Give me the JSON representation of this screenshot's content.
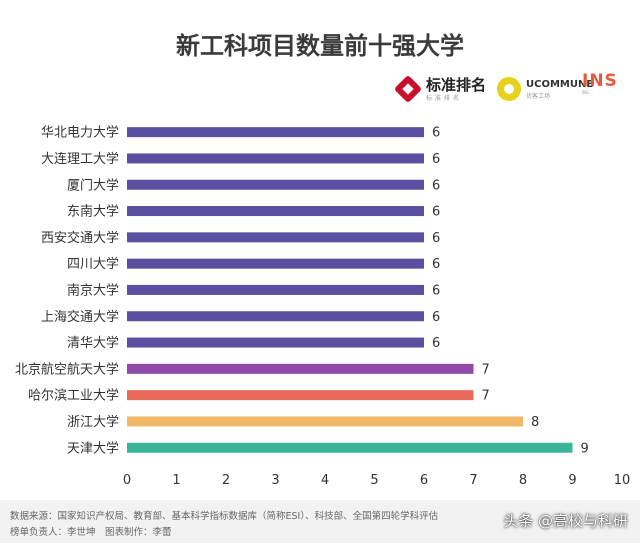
{
  "chart_data": {
    "type": "bar",
    "orientation": "horizontal",
    "title": "新工科项目数量前十强大学",
    "categories": [
      "华北电力大学",
      "大连理工大学",
      "厦门大学",
      "东南大学",
      "西安交通大学",
      "四川大学",
      "南京大学",
      "上海交通大学",
      "清华大学",
      "北京航空航天大学",
      "哈尔滨工业大学",
      "浙江大学",
      "天津大学"
    ],
    "values": [
      6,
      6,
      6,
      6,
      6,
      6,
      6,
      6,
      6,
      7,
      7,
      8,
      9
    ],
    "colors": [
      "#5a4fa0",
      "#5a4fa0",
      "#5a4fa0",
      "#5a4fa0",
      "#5a4fa0",
      "#5a4fa0",
      "#5a4fa0",
      "#5a4fa0",
      "#5a4fa0",
      "#8e4aa6",
      "#e86a5a",
      "#f2b86a",
      "#3ab59a"
    ],
    "xlim": [
      0,
      10
    ],
    "xticks": [
      0,
      1,
      2,
      3,
      4,
      5,
      6,
      7,
      8,
      9,
      10
    ],
    "xlabel": "",
    "ylabel": "",
    "grid": false,
    "data_labels": true
  },
  "logos": {
    "logo1_text": "标准排名",
    "logo1_sub": "标准排名",
    "logo2_text": "UCOMMUNE",
    "logo2_sub": "优客工场",
    "logo3_text": "INS",
    "logo3_sub": "INS"
  },
  "footer": {
    "line1": "数据来源：国家知识产权局、教育部、基本科学指标数据库（简称ESI）、科技部、全国第四轮学科评估",
    "line2": "榜单负责人：李世坤　图表制作：李蕾"
  },
  "watermark": "头条 @高校与科研"
}
